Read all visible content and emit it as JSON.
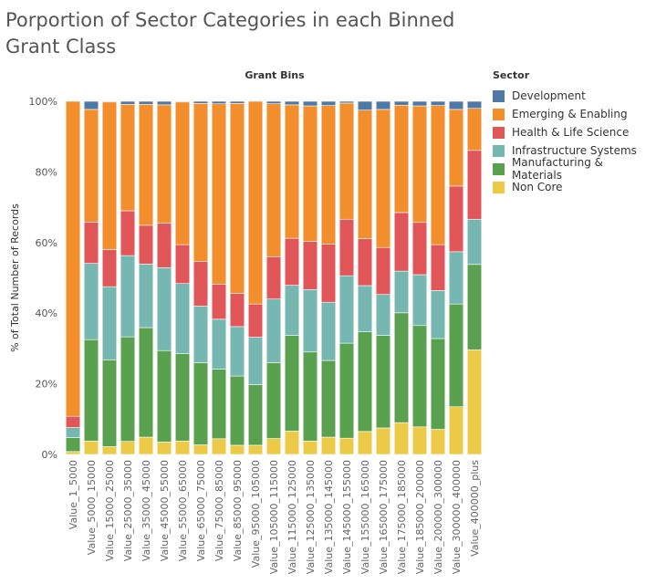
{
  "chart_data": {
    "type": "bar",
    "stacked": true,
    "normalized": true,
    "title": "Porportion of Sector Categories in each Binned Grant Class",
    "column_header": "Grant Bins",
    "ylabel": "% of Total Number of Records",
    "ylim": [
      0,
      100
    ],
    "yticks": [
      "0%",
      "20%",
      "40%",
      "60%",
      "80%",
      "100%"
    ],
    "legend_title": "Sector",
    "legend_position": "right",
    "categories": [
      "Value_1_5000",
      "Value_5000_15000",
      "Value_15000_25000",
      "Value_25000_35000",
      "Value_35000_45000",
      "Value_45000_55000",
      "Value_55000_65000",
      "Value_65000_75000",
      "Value_75000_85000",
      "Value_85000_95000",
      "Value_95000_105000",
      "Value_105000_115000",
      "Value_115000_125000",
      "Value_125000_135000",
      "Value_135000_145000",
      "Value_145000_155000",
      "Value_155000_165000",
      "Value_165000_175000",
      "Value_175000_185000",
      "Value_185000_200000",
      "Value_200000_300000",
      "Value_300000_400000",
      "Value_400000_plus"
    ],
    "series": [
      {
        "name": "Non Core",
        "color": "#edc948",
        "values": [
          0.8,
          3.8,
          2.2,
          3.7,
          4.9,
          3.5,
          3.8,
          2.7,
          4.4,
          2.6,
          2.6,
          4.5,
          6.6,
          3.8,
          4.9,
          4.6,
          6.5,
          7.5,
          9.0,
          7.8,
          7.1,
          13.5,
          29.6
        ]
      },
      {
        "name": "Manufacturing & Materials",
        "color": "#59a14f",
        "values": [
          4.0,
          28.7,
          24.6,
          29.6,
          31.0,
          25.9,
          24.7,
          23.3,
          19.5,
          19.6,
          17.2,
          21.5,
          27.1,
          25.2,
          21.7,
          26.9,
          28.2,
          26.2,
          31.1,
          28.7,
          25.7,
          29.1,
          24.2
        ]
      },
      {
        "name": "Infrastructure Systems",
        "color": "#76b7b2",
        "values": [
          2.8,
          21.6,
          20.7,
          23.0,
          18.0,
          23.5,
          19.9,
          16.0,
          14.0,
          14.0,
          13.4,
          18.0,
          14.2,
          17.7,
          16.5,
          19.1,
          13.1,
          11.6,
          11.8,
          14.4,
          13.6,
          14.8,
          12.8
        ]
      },
      {
        "name": "Health & Life Science",
        "color": "#e15759",
        "values": [
          3.2,
          11.7,
          10.5,
          12.7,
          11.0,
          12.6,
          11.0,
          12.6,
          9.8,
          9.4,
          9.4,
          12.0,
          13.3,
          13.6,
          16.5,
          16.0,
          13.3,
          13.3,
          16.6,
          14.8,
          13.0,
          18.6,
          19.5
        ]
      },
      {
        "name": "Emerging & Enabling",
        "color": "#f28e2b",
        "values": [
          89.2,
          31.9,
          41.8,
          30.1,
          34.2,
          33.5,
          40.4,
          44.8,
          50.6,
          53.8,
          57.4,
          43.3,
          37.8,
          38.4,
          39.2,
          32.9,
          36.4,
          39.1,
          30.4,
          33.0,
          39.4,
          21.7,
          11.9
        ]
      },
      {
        "name": "Development",
        "color": "#4e79a7",
        "values": [
          0,
          2.3,
          0.2,
          0.9,
          0.9,
          1.0,
          0.2,
          0.6,
          0.7,
          0.6,
          0,
          0.7,
          1.0,
          1.3,
          1.2,
          0.5,
          2.5,
          2.3,
          1.1,
          1.3,
          1.2,
          2.3,
          2.0
        ]
      }
    ],
    "legend_order": [
      "Development",
      "Emerging & Enabling",
      "Health & Life Science",
      "Infrastructure Systems",
      "Manufacturing & Materials",
      "Non Core"
    ],
    "gridlines": false
  }
}
